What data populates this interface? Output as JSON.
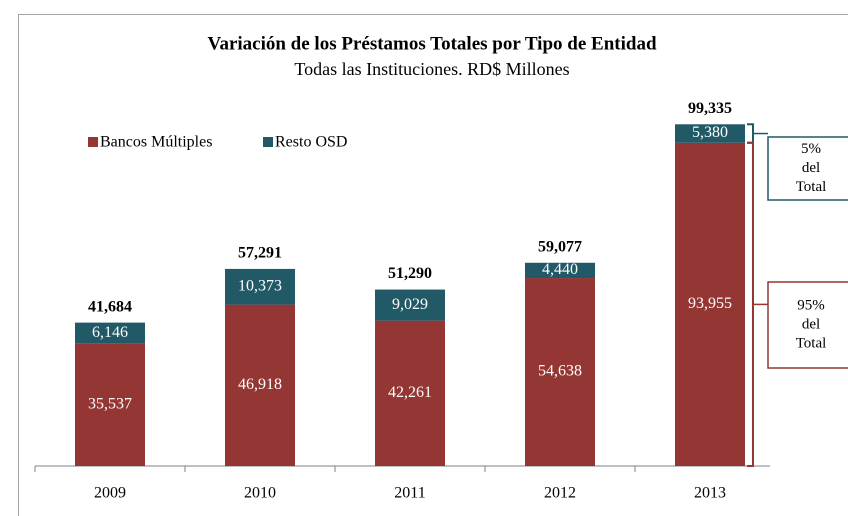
{
  "chart_data": {
    "type": "stacked_bar",
    "title": "Variación de los Préstamos Totales por Tipo de Entidad",
    "subtitle": "Todas las Instituciones. RD$ Millones",
    "categories": [
      "2009",
      "2010",
      "2011",
      "2012",
      "2013"
    ],
    "series": [
      {
        "name": "Bancos Múltiples",
        "color": "#943634",
        "values": [
          35537,
          46918,
          42261,
          54638,
          93955
        ],
        "value_labels": [
          "35,537",
          "46,918",
          "42,261",
          "54,638",
          "93,955"
        ]
      },
      {
        "name": "Resto OSD",
        "color": "#215967",
        "values": [
          6146,
          10373,
          9029,
          4440,
          5380
        ],
        "value_labels": [
          "6,146",
          "10,373",
          "9,029",
          "4,440",
          "5,380"
        ]
      }
    ],
    "totals": [
      41684,
      57291,
      51290,
      59077,
      99335
    ],
    "total_labels": [
      "41,684",
      "57,291",
      "51,290",
      "59,077",
      "99,335"
    ],
    "annotations": [
      {
        "lines": [
          "5%",
          "del",
          "Total"
        ],
        "color": "#215967"
      },
      {
        "lines": [
          "95%",
          "del",
          "Total"
        ],
        "color": "#943634"
      }
    ],
    "ylim": [
      0,
      100000
    ],
    "legend": "top-left"
  }
}
